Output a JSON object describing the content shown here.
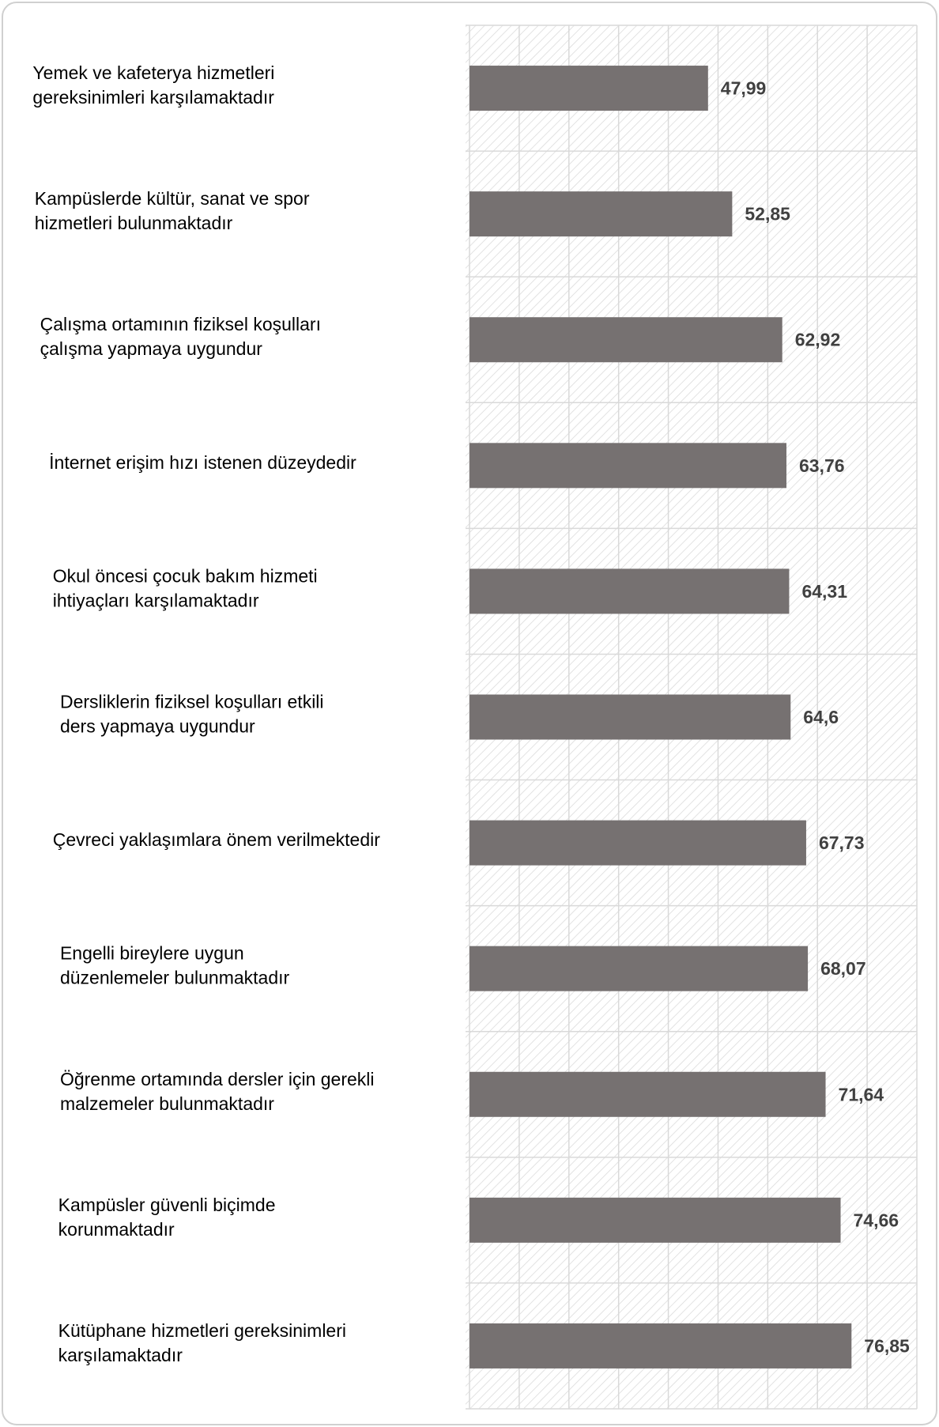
{
  "chart_data": {
    "type": "barh",
    "categories": [
      [
        "Yemek ve kafeterya hizmetleri",
        "gereksinimleri karşılamaktadır"
      ],
      [
        "Kampüslerde kültür, sanat ve spor",
        "hizmetleri bulunmaktadır"
      ],
      [
        "Çalışma ortamının fiziksel koşulları",
        "çalışma yapmaya uygundur"
      ],
      [
        "İnternet erişim hızı istenen düzeydedir"
      ],
      [
        "Okul öncesi çocuk bakım hizmeti",
        "ihtiyaçları karşılamaktadır"
      ],
      [
        "Dersliklerin fiziksel koşulları etkili",
        "ders yapmaya uygundur"
      ],
      [
        "Çevreci yaklaşımlara önem verilmektedir"
      ],
      [
        "Engelli bireylere uygun",
        "düzenlemeler bulunmaktadır"
      ],
      [
        "Öğrenme ortamında dersler için gerekli",
        "malzemeler bulunmaktadır"
      ],
      [
        "Kampüsler güvenli biçimde",
        "korunmaktadır"
      ],
      [
        "Kütüphane hizmetleri gereksinimleri",
        "karşılamaktadır"
      ]
    ],
    "values": [
      47.99,
      52.85,
      62.92,
      63.76,
      64.31,
      64.6,
      67.73,
      68.07,
      71.64,
      74.66,
      76.85
    ],
    "value_labels": [
      "47,99",
      "52,85",
      "62,92",
      "63,76",
      "64,31",
      "64,6",
      "67,73",
      "68,07",
      "71,64",
      "74,66",
      "76,85"
    ],
    "color": "#767171",
    "xlim": [
      0,
      90
    ],
    "xticks": [
      0,
      10,
      20,
      30,
      40,
      50,
      60,
      70,
      80,
      90
    ],
    "grid": true
  }
}
